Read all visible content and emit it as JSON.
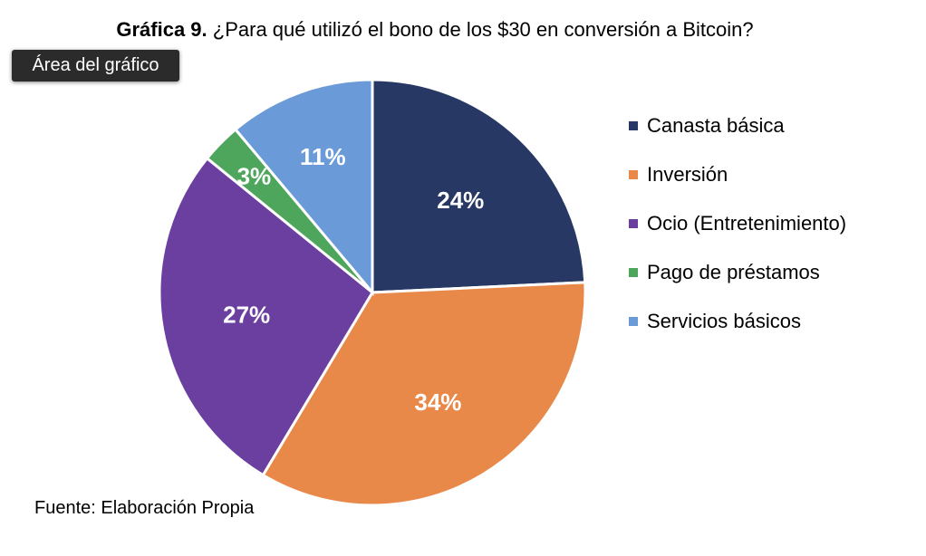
{
  "chart_data": {
    "type": "pie",
    "title_prefix": "Gráfica 9.",
    "title": "¿Para qué utilizó el bono de los $30 en conversión a Bitcoin?",
    "categories": [
      "Canasta básica",
      "Inversión",
      "Ocio (Entretenimiento)",
      "Pago de préstamos",
      "Servicios básicos"
    ],
    "values": [
      24,
      34,
      27,
      3,
      11
    ],
    "data_labels": [
      "24%",
      "34%",
      "27%",
      "3%",
      "11%"
    ],
    "colors": [
      "#263863",
      "#E8894A",
      "#6B3FA0",
      "#4EA55C",
      "#6A9BD8"
    ],
    "legend_position": "right",
    "source": "Fuente: Elaboración Propia"
  },
  "tooltip": "Área del gráfico"
}
